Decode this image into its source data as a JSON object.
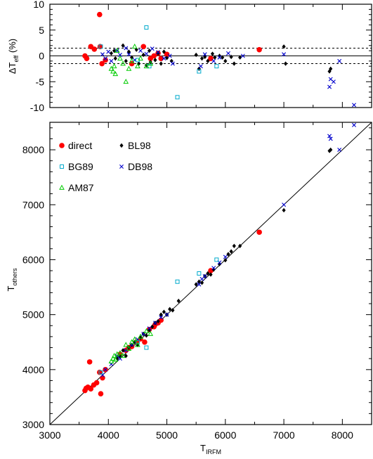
{
  "chart_data": [
    {
      "type": "scatter",
      "panel": "residual",
      "ylabel": "ΔT_eff (%)",
      "xlim": [
        3000,
        8500
      ],
      "ylim": [
        -10,
        10
      ],
      "yticks": [
        "10",
        "5",
        "0",
        "-5",
        "-10"
      ],
      "reference_lines": [
        {
          "y": 0,
          "style": "solid"
        },
        {
          "y": 1.5,
          "style": "dashed"
        },
        {
          "y": -1.5,
          "style": "dashed"
        }
      ],
      "series": [
        {
          "name": "direct",
          "marker": "filled-circle",
          "color": "#ff0000",
          "points": [
            [
              3600,
              0
            ],
            [
              3630,
              -0.5
            ],
            [
              3700,
              1.8
            ],
            [
              3760,
              1.3
            ],
            [
              3850,
              8
            ],
            [
              3860,
              1.8
            ],
            [
              3890,
              -1.5
            ],
            [
              3950,
              -0.8
            ],
            [
              4400,
              -1.5
            ],
            [
              4600,
              1.8
            ],
            [
              4720,
              -0.5
            ],
            [
              4780,
              0
            ],
            [
              4850,
              0.5
            ],
            [
              4900,
              -0.5
            ],
            [
              5000,
              0.3
            ],
            [
              5750,
              -0.5
            ],
            [
              6580,
              1.2
            ]
          ]
        },
        {
          "name": "BL98",
          "marker": "diamond",
          "color": "#000000",
          "points": [
            [
              4050,
              0.5
            ],
            [
              4100,
              1
            ],
            [
              4120,
              -0.5
            ],
            [
              4250,
              2
            ],
            [
              4300,
              -1
            ],
            [
              4350,
              0.8
            ],
            [
              4400,
              -0.3
            ],
            [
              4480,
              1.2
            ],
            [
              4520,
              -1.5
            ],
            [
              4600,
              0.2
            ],
            [
              4650,
              -1.8
            ],
            [
              4700,
              1
            ],
            [
              4720,
              -1.2
            ],
            [
              4800,
              -0.8
            ],
            [
              4850,
              0.5
            ],
            [
              4900,
              -1.5
            ],
            [
              4950,
              0.8
            ],
            [
              5000,
              -0.4
            ],
            [
              5080,
              -1
            ],
            [
              5500,
              0.2
            ],
            [
              5550,
              -2.5
            ],
            [
              5600,
              -0.5
            ],
            [
              5650,
              -0.2
            ],
            [
              5700,
              -1
            ],
            [
              5780,
              0.4
            ],
            [
              5820,
              -0.3
            ],
            [
              5900,
              0
            ],
            [
              5950,
              -0.3
            ],
            [
              6000,
              -1
            ],
            [
              6100,
              -0.2
            ],
            [
              6150,
              -1.5
            ],
            [
              6250,
              -0.3
            ],
            [
              7000,
              1.8
            ],
            [
              7030,
              -1.5
            ],
            [
              7780,
              -3
            ],
            [
              7800,
              -2.5
            ]
          ]
        },
        {
          "name": "DB98",
          "marker": "x",
          "color": "#0000cc",
          "points": [
            [
              3900,
              0.3
            ],
            [
              3950,
              -0.5
            ],
            [
              4000,
              0.8
            ],
            [
              4050,
              -1
            ],
            [
              4150,
              1
            ],
            [
              4200,
              0.2
            ],
            [
              4300,
              1.5
            ],
            [
              4350,
              0.3
            ],
            [
              4450,
              -0.8
            ],
            [
              4550,
              1
            ],
            [
              4650,
              0.4
            ],
            [
              4750,
              1.4
            ],
            [
              4850,
              0.7
            ],
            [
              4950,
              -0.5
            ],
            [
              5050,
              0
            ],
            [
              5100,
              -1.5
            ],
            [
              5580,
              -2
            ],
            [
              5650,
              0.3
            ],
            [
              5800,
              -1
            ],
            [
              5900,
              -0.3
            ],
            [
              6050,
              0.5
            ],
            [
              6300,
              0
            ],
            [
              7000,
              0.3
            ],
            [
              7780,
              -6
            ],
            [
              7800,
              -4.5
            ],
            [
              7850,
              -5
            ],
            [
              7950,
              -1
            ],
            [
              8200,
              -9.5
            ]
          ]
        },
        {
          "name": "BG89",
          "marker": "open-square",
          "color": "#00aacc",
          "points": [
            [
              3870,
              1.8
            ],
            [
              4500,
              -0.8
            ],
            [
              4650,
              5.5
            ],
            [
              4700,
              -2
            ],
            [
              5180,
              -8
            ],
            [
              5550,
              -3
            ],
            [
              5850,
              -2
            ]
          ]
        },
        {
          "name": "AM87",
          "marker": "open-triangle",
          "color": "#00cc00",
          "points": [
            [
              4050,
              -2.5
            ],
            [
              4080,
              -3
            ],
            [
              4100,
              -2
            ],
            [
              4120,
              -3.5
            ],
            [
              4150,
              1
            ],
            [
              4200,
              -0.5
            ],
            [
              4250,
              -1.5
            ],
            [
              4300,
              -5
            ],
            [
              4350,
              -2.5
            ],
            [
              4400,
              -1
            ],
            [
              4450,
              1.8
            ],
            [
              4500,
              -2
            ],
            [
              4550,
              -0.5
            ],
            [
              4650,
              -2
            ],
            [
              4720,
              -1.5
            ]
          ]
        }
      ]
    },
    {
      "type": "scatter",
      "panel": "comparison",
      "xlabel": "T_IRFM",
      "ylabel": "T_others",
      "xlim": [
        3000,
        8500
      ],
      "ylim": [
        3000,
        8500
      ],
      "xticks": [
        "3000",
        "4000",
        "5000",
        "6000",
        "7000",
        "8000"
      ],
      "yticks": [
        "3000",
        "4000",
        "5000",
        "6000",
        "7000",
        "8000"
      ],
      "reference_lines": [
        {
          "type": "one-to-one"
        }
      ],
      "legend": {
        "position": "top-left",
        "columns": [
          [
            "direct",
            "BG89",
            "AM87"
          ],
          [
            "BL98",
            "DB98"
          ]
        ]
      },
      "series": [
        {
          "name": "direct",
          "marker": "filled-circle",
          "color": "#ff0000",
          "points": [
            [
              3600,
              3620
            ],
            [
              3620,
              3660
            ],
            [
              3650,
              3680
            ],
            [
              3680,
              4140
            ],
            [
              3700,
              3650
            ],
            [
              3750,
              3720
            ],
            [
              3800,
              3760
            ],
            [
              3850,
              3950
            ],
            [
              3870,
              3560
            ],
            [
              3900,
              3850
            ],
            [
              3950,
              4000
            ],
            [
              4200,
              4280
            ],
            [
              4300,
              4350
            ],
            [
              4350,
              4400
            ],
            [
              4400,
              4420
            ],
            [
              4480,
              4500
            ],
            [
              4550,
              4560
            ],
            [
              4620,
              4500
            ],
            [
              4700,
              4730
            ],
            [
              4780,
              4780
            ],
            [
              4800,
              4820
            ],
            [
              4850,
              4850
            ],
            [
              4900,
              4900
            ],
            [
              5750,
              5800
            ],
            [
              6580,
              6500
            ]
          ]
        },
        {
          "name": "BL98",
          "marker": "diamond",
          "color": "#000000",
          "points": [
            [
              4150,
              4200
            ],
            [
              4200,
              4240
            ],
            [
              4250,
              4350
            ],
            [
              4300,
              4250
            ],
            [
              4350,
              4400
            ],
            [
              4400,
              4450
            ],
            [
              4450,
              4500
            ],
            [
              4500,
              4450
            ],
            [
              4550,
              4580
            ],
            [
              4600,
              4650
            ],
            [
              4650,
              4620
            ],
            [
              4700,
              4720
            ],
            [
              4750,
              4780
            ],
            [
              4800,
              4850
            ],
            [
              4850,
              4880
            ],
            [
              4900,
              5000
            ],
            [
              4950,
              5050
            ],
            [
              5000,
              5000
            ],
            [
              5050,
              5100
            ],
            [
              5100,
              5080
            ],
            [
              5200,
              5250
            ],
            [
              5500,
              5550
            ],
            [
              5550,
              5600
            ],
            [
              5600,
              5580
            ],
            [
              5650,
              5700
            ],
            [
              5700,
              5750
            ],
            [
              5750,
              5730
            ],
            [
              5800,
              5820
            ],
            [
              5900,
              5920
            ],
            [
              6000,
              5990
            ],
            [
              6050,
              6100
            ],
            [
              6100,
              6150
            ],
            [
              6150,
              6250
            ],
            [
              6250,
              6250
            ],
            [
              7000,
              6900
            ],
            [
              7780,
              7980
            ],
            [
              7800,
              8000
            ]
          ]
        },
        {
          "name": "DB98",
          "marker": "x",
          "color": "#0000cc",
          "points": [
            [
              3900,
              3900
            ],
            [
              3950,
              4000
            ],
            [
              4050,
              4100
            ],
            [
              4150,
              4250
            ],
            [
              4200,
              4200
            ],
            [
              4300,
              4350
            ],
            [
              4400,
              4450
            ],
            [
              4500,
              4550
            ],
            [
              4600,
              4650
            ],
            [
              4700,
              4750
            ],
            [
              4800,
              4850
            ],
            [
              4900,
              4950
            ],
            [
              5000,
              5000
            ],
            [
              5550,
              5550
            ],
            [
              5600,
              5650
            ],
            [
              5650,
              5700
            ],
            [
              5800,
              5850
            ],
            [
              5900,
              5950
            ],
            [
              6000,
              6050
            ],
            [
              7000,
              7000
            ],
            [
              7780,
              8250
            ],
            [
              7800,
              8200
            ],
            [
              7950,
              8000
            ],
            [
              8200,
              8450
            ]
          ]
        },
        {
          "name": "BG89",
          "marker": "open-square",
          "color": "#00aacc",
          "points": [
            [
              3870,
              3950
            ],
            [
              4500,
              4500
            ],
            [
              4650,
              4400
            ],
            [
              5180,
              5600
            ],
            [
              5550,
              5750
            ],
            [
              5850,
              6000
            ]
          ]
        },
        {
          "name": "AM87",
          "marker": "open-triangle",
          "color": "#00cc00",
          "points": [
            [
              4050,
              4150
            ],
            [
              4080,
              4200
            ],
            [
              4100,
              4250
            ],
            [
              4120,
              4180
            ],
            [
              4150,
              4280
            ],
            [
              4200,
              4300
            ],
            [
              4250,
              4250
            ],
            [
              4300,
              4450
            ],
            [
              4350,
              4380
            ],
            [
              4400,
              4500
            ],
            [
              4450,
              4550
            ],
            [
              4500,
              4450
            ],
            [
              4550,
              4600
            ],
            [
              4650,
              4700
            ],
            [
              4720,
              4650
            ]
          ]
        }
      ]
    }
  ]
}
